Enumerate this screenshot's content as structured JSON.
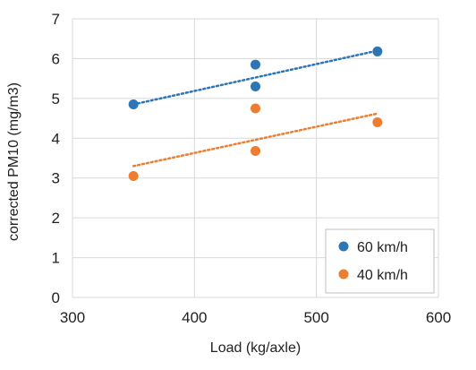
{
  "chart_data": {
    "type": "scatter",
    "xlabel": "Load (kg/axle)",
    "ylabel": "corrected PM10 (mg/m3)",
    "xlim": [
      300,
      600
    ],
    "ylim": [
      0,
      7
    ],
    "x_ticks": [
      300,
      400,
      500,
      600
    ],
    "y_ticks": [
      0,
      1,
      2,
      3,
      4,
      5,
      6,
      7
    ],
    "grid": true,
    "legend_position": "bottom-right",
    "series": [
      {
        "name": "60 km/h",
        "color": "#2E75B6",
        "points": [
          {
            "x": 350,
            "y": 4.85
          },
          {
            "x": 450,
            "y": 5.85
          },
          {
            "x": 450,
            "y": 5.3
          },
          {
            "x": 550,
            "y": 6.18
          }
        ],
        "trendline": {
          "style": "dotted",
          "from": {
            "x": 350,
            "y": 4.85
          },
          "to": {
            "x": 550,
            "y": 6.2
          }
        }
      },
      {
        "name": "40 km/h",
        "color": "#ED7D31",
        "points": [
          {
            "x": 350,
            "y": 3.05
          },
          {
            "x": 450,
            "y": 4.75
          },
          {
            "x": 450,
            "y": 3.68
          },
          {
            "x": 550,
            "y": 4.4
          }
        ],
        "trendline": {
          "style": "dotted",
          "from": {
            "x": 350,
            "y": 3.3
          },
          "to": {
            "x": 550,
            "y": 4.62
          }
        }
      }
    ]
  },
  "colors": {
    "grid": "#D9D9D9",
    "legend_border": "#BFBFBF"
  }
}
